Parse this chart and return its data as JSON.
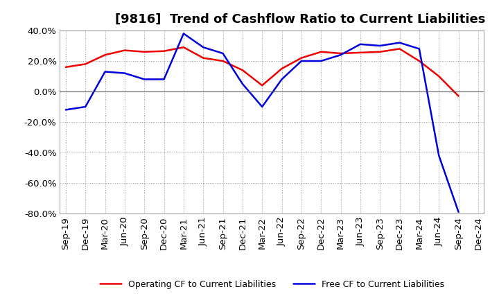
{
  "title": "[9816]  Trend of Cashflow Ratio to Current Liabilities",
  "x_labels": [
    "Sep-19",
    "Dec-19",
    "Mar-20",
    "Jun-20",
    "Sep-20",
    "Dec-20",
    "Mar-21",
    "Jun-21",
    "Sep-21",
    "Dec-21",
    "Mar-22",
    "Jun-22",
    "Sep-22",
    "Dec-22",
    "Mar-23",
    "Jun-23",
    "Sep-23",
    "Dec-23",
    "Mar-24",
    "Jun-24",
    "Sep-24",
    "Dec-24"
  ],
  "operating_cf": [
    16.0,
    18.0,
    24.0,
    27.0,
    26.0,
    26.5,
    29.0,
    22.0,
    20.0,
    14.0,
    4.0,
    15.0,
    22.0,
    26.0,
    25.0,
    25.5,
    26.0,
    28.0,
    20.0,
    10.0,
    -3.0,
    null
  ],
  "free_cf": [
    -12.0,
    -10.0,
    13.0,
    12.0,
    8.0,
    8.0,
    38.0,
    29.0,
    25.0,
    5.0,
    -10.0,
    8.0,
    20.0,
    20.0,
    24.0,
    31.0,
    30.0,
    32.0,
    28.0,
    -42.0,
    -79.0,
    null
  ],
  "operating_color": "#EE0000",
  "free_color": "#0000DD",
  "ylim": [
    -80.0,
    40.0
  ],
  "yticks": [
    -80.0,
    -60.0,
    -40.0,
    -20.0,
    0.0,
    20.0,
    40.0
  ],
  "background_color": "#FFFFFF",
  "grid_color": "#999999",
  "line_width": 1.8,
  "title_fontsize": 13,
  "tick_fontsize": 9.5
}
